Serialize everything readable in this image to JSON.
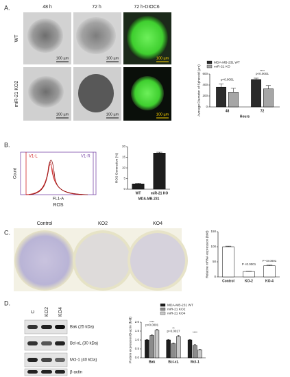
{
  "figure": {
    "panel_a": {
      "label": "A.",
      "columns": [
        "48 h",
        "72 h",
        "72 h-DIOC6"
      ],
      "rows": [
        "WT",
        "miR-21 KO2"
      ],
      "scale_bars": [
        "100 µm",
        "100 µm",
        "100 µm",
        "100 µm",
        "100 µm",
        "100 µm"
      ]
    },
    "panel_b": {
      "label": "B.",
      "gates": [
        "V1-L",
        "V1-R"
      ],
      "y_label": "Count",
      "x_label": "FL1-A",
      "x_title": "ROS"
    },
    "panel_c": {
      "label": "C.",
      "columns": [
        "Control",
        "KO2",
        "KO4"
      ]
    },
    "panel_d": {
      "label": "D.",
      "lanes": [
        "C",
        "KO2",
        "KO4"
      ],
      "bands": [
        "Bak (25 kDa)",
        "Bcl-xL (30 kDa)",
        "Mcl-1 (40 kDa)",
        "β-actin"
      ]
    }
  },
  "chart_data": [
    {
      "type": "bar",
      "y_label": "Average Diameter of Spheroid (µm)",
      "x_label": "Hours",
      "categories": [
        "48",
        "72"
      ],
      "series": [
        {
          "name": "MDA-MB-231 WT",
          "color": "#2b2b2b",
          "values": [
            360,
            500
          ],
          "errors": [
            60,
            25
          ]
        },
        {
          "name": "miR-21 KO",
          "color": "#a6a6a6",
          "values": [
            270,
            330
          ],
          "errors": [
            70,
            60
          ]
        }
      ],
      "ylim": [
        0,
        600
      ],
      "yticks": [
        0,
        200,
        400,
        600
      ],
      "annotations": [
        "p<0.0001",
        "****",
        "p<0.0001"
      ]
    },
    {
      "type": "bar",
      "y_label": "ROS Generation (%)",
      "x_label": "MDA-MB-231",
      "categories": [
        "WT",
        "miR-21 KO"
      ],
      "values": [
        2.5,
        17
      ],
      "errors": [
        0.3,
        0.4
      ],
      "color": "#1e1e1e",
      "ylim": [
        0,
        20
      ],
      "yticks": [
        0,
        5,
        10,
        15,
        20
      ]
    },
    {
      "type": "bar",
      "y_label": "Relative mRNA expression (fold)",
      "categories": [
        "Control",
        "KO-2",
        "KO-4"
      ],
      "values": [
        100,
        18,
        37
      ],
      "errors": [
        2,
        1,
        2
      ],
      "color": "#ffffff",
      "ylim": [
        0,
        150
      ],
      "yticks": [
        0,
        50,
        100,
        150
      ],
      "annotations": [
        "P <0.0001",
        "P <0.0001"
      ]
    },
    {
      "type": "bar",
      "y_label": "Protein expression/β-actin (fold)",
      "categories": [
        "Bak",
        "Bcl-xL",
        "Mcl-1"
      ],
      "series": [
        {
          "name": "MDA-MB-231 WT",
          "color": "#1e1e1e",
          "values": [
            1.0,
            1.0,
            1.0
          ],
          "errors": [
            0.03,
            0.03,
            0.03
          ]
        },
        {
          "name": "miR-21 KO2",
          "color": "#8c8c8c",
          "values": [
            1.25,
            0.8,
            0.7
          ],
          "errors": [
            0.05,
            0.04,
            0.04
          ]
        },
        {
          "name": "miR-21 KO4",
          "color": "#c8c8c8",
          "values": [
            1.55,
            1.2,
            0.45
          ],
          "errors": [
            0.05,
            0.05,
            0.04
          ]
        }
      ],
      "ylim": [
        0,
        2
      ],
      "yticks": [
        {
          "value": 0,
          "label": "0.0"
        },
        {
          "value": 0.5,
          "label": "0.5"
        },
        {
          "value": 1,
          "label": "1.0"
        },
        {
          "value": 1.5,
          "label": "1.5"
        },
        {
          "value": 2,
          "label": "2.0"
        }
      ],
      "annotations": [
        "****",
        "p<0.0001",
        "**",
        "p=0.0017",
        "****"
      ]
    }
  ]
}
